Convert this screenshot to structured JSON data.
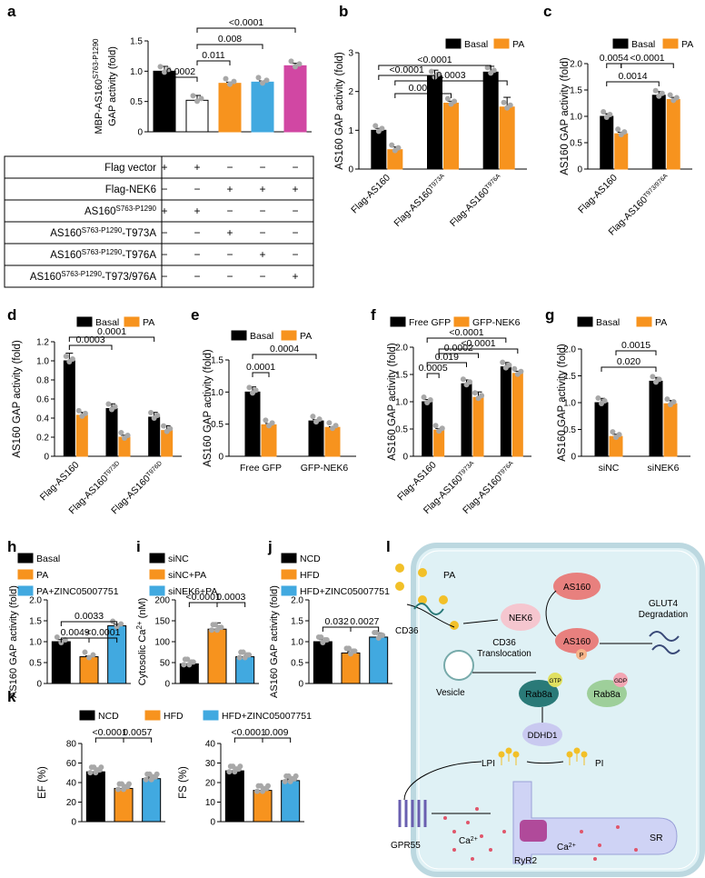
{
  "colors": {
    "basal": "#000000",
    "pa": "#f7931e",
    "blue": "#41a9e0",
    "magenta": "#d147a3",
    "bg": "#dff1f5",
    "membrane": "#bcd8e0",
    "teal": "#2a7a78",
    "pink": "#e8807e",
    "yellow": "#f2c028"
  },
  "chart_data": [
    {
      "panel": "a",
      "type": "bar",
      "ylabel": [
        "MBP-AS160",
        "GAP activity (fold)"
      ],
      "ylabel_sup": "S763-P1290",
      "ylim": [
        0,
        1.5
      ],
      "yticks": [
        "0",
        "0.5",
        "1.0",
        "1.5"
      ],
      "values": [
        1.0,
        0.52,
        0.8,
        0.82,
        1.09
      ],
      "errors": [
        0.08,
        0.08,
        0.02,
        0.02,
        0.04
      ],
      "stats": [
        "0.0002",
        "0.011",
        "0.008",
        "<0.0001"
      ],
      "table": {
        "rows": [
          {
            "label": "Flag vector",
            "cells": [
              "+",
              "+",
              "−",
              "−",
              "−"
            ]
          },
          {
            "label": "Flag-NEK6",
            "cells": [
              "−",
              "−",
              "+",
              "+",
              "+"
            ]
          },
          {
            "label": "AS160",
            "sup": "S763-P1290",
            "cells": [
              "+",
              "+",
              "−",
              "−",
              "−"
            ]
          },
          {
            "label": "AS160",
            "sup": "S763-P1290",
            "tail": "-T973A",
            "cells": [
              "−",
              "−",
              "+",
              "−",
              "−"
            ]
          },
          {
            "label": "AS160",
            "sup": "S763-P1290",
            "tail": "-T976A",
            "cells": [
              "−",
              "−",
              "−",
              "+",
              "−"
            ]
          },
          {
            "label": "AS160",
            "sup": "S763-P1290",
            "tail": "-T973/976A",
            "cells": [
              "−",
              "−",
              "−",
              "−",
              "+"
            ]
          }
        ]
      }
    },
    {
      "panel": "b",
      "type": "bar",
      "ylabel": "AS160 GAP activity (fold)",
      "ylim": [
        0,
        3
      ],
      "yticks": [
        "0",
        "1",
        "2",
        "3"
      ],
      "legend": [
        "Basal",
        "PA"
      ],
      "categories": [
        "Flag-AS160",
        "Flag-AS160",
        "Flag-AS160"
      ],
      "cat_sups": [
        "",
        "T973A",
        "T976A"
      ],
      "series": [
        {
          "name": "Basal",
          "values": [
            1.0,
            2.4,
            2.5
          ],
          "errors": [
            0.05,
            0.15,
            0.15
          ]
        },
        {
          "name": "PA",
          "values": [
            0.5,
            1.7,
            1.6
          ],
          "errors": [
            0.07,
            0.05,
            0.25
          ]
        }
      ],
      "stats": [
        "<0.0001",
        "<0.0001",
        "0.0001",
        "0.0003"
      ]
    },
    {
      "panel": "c",
      "type": "bar",
      "ylabel": "AS160 GAP activity (fold)",
      "ylim": [
        0,
        2.0
      ],
      "yticks": [
        "0",
        "0.5",
        "1.0",
        "1.5",
        "2.0"
      ],
      "legend": [
        "Basal",
        "PA"
      ],
      "categories": [
        "Flag-AS160",
        "Flag-AS160"
      ],
      "cat_sups": [
        "",
        "T973/976A"
      ],
      "series": [
        {
          "name": "Basal",
          "values": [
            1.0,
            1.4
          ],
          "errors": [
            0.05,
            0.07
          ]
        },
        {
          "name": "PA",
          "values": [
            0.67,
            1.32
          ],
          "errors": [
            0.03,
            0.04
          ]
        }
      ],
      "stats": [
        "0.0054",
        "<0.0001",
        "0.0014"
      ]
    },
    {
      "panel": "d",
      "type": "bar",
      "ylabel": "AS160 GAP activity (fold)",
      "ylim": [
        0,
        1.2
      ],
      "yticks": [
        "0",
        "0.2",
        "0.4",
        "0.6",
        "0.8",
        "1.0",
        "1.2"
      ],
      "legend": [
        "Basal",
        "PA"
      ],
      "categories": [
        "Flag-AS160",
        "Flag-AS160",
        "Flag-AS160"
      ],
      "cat_sups": [
        "",
        "T973D",
        "T976D"
      ],
      "series": [
        {
          "name": "Basal",
          "values": [
            1.0,
            0.5,
            0.41
          ],
          "errors": [
            0.08,
            0.05,
            0.05
          ]
        },
        {
          "name": "PA",
          "values": [
            0.43,
            0.2,
            0.27
          ],
          "errors": [
            0.03,
            0.02,
            0.05
          ]
        }
      ],
      "stats": [
        "0.0003",
        "0.0001"
      ]
    },
    {
      "panel": "e",
      "type": "bar",
      "ylabel": "AS160 GAP activity (fold)",
      "ylim": [
        0,
        1.5
      ],
      "yticks": [
        "0",
        "0.5",
        "1.0",
        "1.5"
      ],
      "legend": [
        "Basal",
        "PA"
      ],
      "categories": [
        "Free GFP",
        "GFP-NEK6"
      ],
      "cat_sups": [
        "",
        ""
      ],
      "series": [
        {
          "name": "Basal",
          "values": [
            1.0,
            0.55
          ],
          "errors": [
            0.08,
            0.02
          ]
        },
        {
          "name": "PA",
          "values": [
            0.49,
            0.45
          ],
          "errors": [
            0.02,
            0.01
          ]
        }
      ],
      "stats": [
        "0.0001",
        "0.0004"
      ]
    },
    {
      "panel": "f",
      "type": "bar",
      "ylabel": "AS160 GAP activity (fold)",
      "ylim": [
        0,
        2.0
      ],
      "yticks": [
        "0",
        "0.5",
        "1.0",
        "1.5",
        "2.0"
      ],
      "legend": [
        "Free GFP",
        "GFP-NEK6"
      ],
      "categories": [
        "Flag-AS160",
        "Flag-AS160",
        "Flag-AS160"
      ],
      "cat_sups": [
        "",
        "T973A",
        "T976A"
      ],
      "series": [
        {
          "name": "Free GFP",
          "values": [
            1.0,
            1.33,
            1.64
          ],
          "errors": [
            0.04,
            0.07,
            0.08
          ]
        },
        {
          "name": "GFP-NEK6",
          "values": [
            0.48,
            1.08,
            1.52
          ],
          "errors": [
            0.03,
            0.1,
            0.04
          ]
        }
      ],
      "stats": [
        "0.0005",
        "0.019",
        "0.0002",
        "<0.0001",
        "<0.0001"
      ]
    },
    {
      "panel": "g",
      "type": "bar",
      "ylabel": "AS160 GAP activity (fold)",
      "ylim": [
        0,
        2.0
      ],
      "yticks": [
        "0",
        "0.5",
        "1.0",
        "1.5",
        "2.0"
      ],
      "legend": [
        "Basal",
        "PA"
      ],
      "categories": [
        "siNC",
        "siNEK6"
      ],
      "cat_sups": [
        "",
        ""
      ],
      "series": [
        {
          "name": "Basal",
          "values": [
            1.0,
            1.4
          ],
          "errors": [
            0.08,
            0.07
          ]
        },
        {
          "name": "PA",
          "values": [
            0.37,
            0.98
          ],
          "errors": [
            0.04,
            0.06
          ]
        }
      ],
      "stats": [
        "0.020",
        "0.0015"
      ]
    },
    {
      "panel": "h",
      "type": "bar",
      "ylabel": "AS160 GAP activity (fold)",
      "ylim": [
        0,
        2.0
      ],
      "yticks": [
        "0",
        "0.5",
        "1.0",
        "1.5",
        "2.0"
      ],
      "legend": [
        "Basal",
        "PA",
        "PA+ZINC05007751"
      ],
      "values": [
        1.0,
        0.64,
        1.38
      ],
      "errors": [
        0.05,
        0.02,
        0.04
      ],
      "stats": [
        "0.0049",
        "<0.0001",
        "0.0033"
      ]
    },
    {
      "panel": "i",
      "type": "bar",
      "ylabel": "Cytosolic Ca",
      "ylabel_sup": "2+",
      "ylabel_tail": " (nM)",
      "ylim": [
        0,
        200
      ],
      "yticks": [
        "0",
        "50",
        "100",
        "150",
        "200"
      ],
      "legend": [
        "siNC",
        "siNC+PA",
        "siNEK6+PA"
      ],
      "values": [
        47,
        130,
        64
      ],
      "errors": [
        8,
        15,
        7
      ],
      "stats": [
        "<0.0001",
        "0.0003"
      ]
    },
    {
      "panel": "j",
      "type": "bar",
      "ylabel": "AS160 GAP activity (fold)",
      "ylim": [
        0,
        2.0
      ],
      "yticks": [
        "0",
        "0.5",
        "1.0",
        "1.5",
        "2.0"
      ],
      "legend": [
        "NCD",
        "HFD",
        "HFD+ZINC05007751"
      ],
      "values": [
        1.0,
        0.73,
        1.11
      ],
      "errors": [
        0.05,
        0.03,
        0.1
      ],
      "stats": [
        "0.032",
        "0.0027"
      ]
    },
    {
      "panel": "k",
      "type": "bar",
      "legend": [
        "NCD",
        "HFD",
        "HFD+ZINC05007751"
      ],
      "subplots": [
        {
          "ylabel": "EF (%)",
          "ylim": [
            0,
            80
          ],
          "yticks": [
            "0",
            "20",
            "40",
            "60",
            "80"
          ],
          "values": [
            51,
            34,
            44
          ],
          "errors": [
            3,
            3,
            1.5
          ],
          "stats": [
            "<0.0001",
            "0.0057"
          ]
        },
        {
          "ylabel": "FS (%)",
          "ylim": [
            0,
            40
          ],
          "yticks": [
            "0",
            "10",
            "20",
            "30",
            "40"
          ],
          "values": [
            26,
            16,
            21
          ],
          "errors": [
            1.5,
            1.5,
            0.8
          ],
          "stats": [
            "<0.0001",
            "0.009"
          ]
        }
      ]
    }
  ],
  "panel_letters": [
    "a",
    "b",
    "c",
    "d",
    "e",
    "f",
    "g",
    "h",
    "i",
    "j",
    "k",
    "l"
  ],
  "diagram": {
    "pa": "PA",
    "cd36": "CD36",
    "nek6": "NEK6",
    "as160": "AS160",
    "as160p": "AS160",
    "p": "P",
    "glut4": "GLUT4",
    "degradation": "Degradation",
    "translocation_1": "CD36",
    "translocation_2": "Translocation",
    "vesicle": "Vesicle",
    "rab8a": "Rab8a",
    "gtp": "GTP",
    "gdp": "GDP",
    "ddhd1": "DDHD1",
    "lpi": "LPI",
    "pi": "PI",
    "gpr55": "GPR55",
    "ca": "Ca",
    "ca_sup": "2+",
    "ryr2": "RyR2",
    "sr": "SR"
  }
}
